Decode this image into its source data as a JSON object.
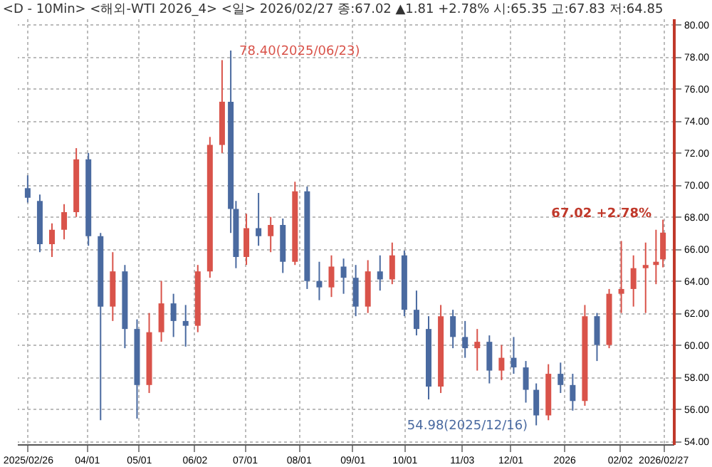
{
  "chart_data": {
    "type": "candlestick",
    "title": "<D - 10Min> <해외-WTI 2026_4> <일> 2026/02/27 종:67.02 ▲1.81 +2.78% 시:65.35 고:67.83 저:64.85",
    "x": [
      "2025-02-26",
      "2025-03-05",
      "2025-03-12",
      "2025-03-19",
      "2025-03-26",
      "2025-04-02",
      "2025-04-09",
      "2025-04-16",
      "2025-04-23",
      "2025-04-30",
      "2025-05-07",
      "2025-05-14",
      "2025-05-21",
      "2025-05-28",
      "2025-06-04",
      "2025-06-11",
      "2025-06-18",
      "2025-06-23",
      "2025-06-26",
      "2025-07-02",
      "2025-07-09",
      "2025-07-16",
      "2025-07-23",
      "2025-07-30",
      "2025-08-06",
      "2025-08-13",
      "2025-08-20",
      "2025-08-27",
      "2025-09-03",
      "2025-09-10",
      "2025-09-17",
      "2025-09-24",
      "2025-10-01",
      "2025-10-08",
      "2025-10-15",
      "2025-10-22",
      "2025-10-29",
      "2025-11-05",
      "2025-11-12",
      "2025-11-19",
      "2025-11-26",
      "2025-12-03",
      "2025-12-10",
      "2025-12-16",
      "2025-12-23",
      "2025-12-30",
      "2026-01-06",
      "2026-01-13",
      "2026-01-20",
      "2026-01-27",
      "2026-02-03",
      "2026-02-10",
      "2026-02-17",
      "2026-02-23",
      "2026-02-27"
    ],
    "ohlc": [
      [
        69.8,
        70.6,
        68.9,
        69.2
      ],
      [
        69.0,
        69.4,
        65.8,
        66.3
      ],
      [
        66.3,
        67.6,
        65.5,
        67.2
      ],
      [
        67.2,
        68.8,
        66.6,
        68.3
      ],
      [
        68.3,
        72.3,
        68.0,
        71.6
      ],
      [
        71.6,
        72.0,
        66.2,
        66.8
      ],
      [
        66.8,
        67.0,
        55.3,
        62.4
      ],
      [
        62.4,
        65.8,
        61.5,
        64.6
      ],
      [
        64.6,
        65.0,
        59.8,
        61.0
      ],
      [
        61.0,
        61.6,
        55.4,
        57.5
      ],
      [
        57.5,
        62.0,
        57.0,
        60.8
      ],
      [
        60.8,
        64.0,
        60.2,
        62.6
      ],
      [
        62.6,
        63.2,
        60.5,
        61.5
      ],
      [
        61.5,
        62.5,
        59.9,
        61.2
      ],
      [
        61.2,
        65.0,
        60.8,
        64.6
      ],
      [
        64.6,
        73.0,
        64.2,
        72.5
      ],
      [
        72.5,
        77.8,
        72.0,
        75.2
      ],
      [
        75.2,
        78.4,
        67.0,
        68.5
      ],
      [
        68.5,
        69.0,
        64.8,
        65.5
      ],
      [
        65.5,
        68.2,
        65.0,
        67.3
      ],
      [
        67.3,
        69.5,
        66.2,
        66.8
      ],
      [
        66.8,
        68.0,
        65.8,
        67.5
      ],
      [
        67.5,
        67.9,
        64.5,
        65.2
      ],
      [
        65.2,
        70.2,
        65.0,
        69.6
      ],
      [
        69.6,
        69.9,
        63.5,
        64.0
      ],
      [
        64.0,
        65.2,
        62.8,
        63.6
      ],
      [
        63.6,
        65.6,
        63.0,
        64.9
      ],
      [
        64.9,
        65.4,
        63.2,
        64.2
      ],
      [
        64.2,
        65.0,
        61.8,
        62.4
      ],
      [
        62.4,
        65.3,
        62.0,
        64.6
      ],
      [
        64.6,
        65.6,
        63.4,
        64.1
      ],
      [
        64.1,
        66.4,
        63.8,
        65.6
      ],
      [
        65.6,
        65.9,
        61.8,
        62.2
      ],
      [
        62.2,
        63.4,
        60.6,
        61.0
      ],
      [
        61.0,
        61.8,
        56.6,
        57.4
      ],
      [
        57.4,
        62.5,
        57.0,
        61.8
      ],
      [
        61.8,
        62.2,
        59.8,
        60.5
      ],
      [
        60.5,
        61.5,
        59.2,
        59.8
      ],
      [
        59.8,
        61.0,
        58.4,
        60.2
      ],
      [
        60.2,
        60.6,
        57.6,
        58.4
      ],
      [
        58.4,
        60.0,
        57.8,
        59.2
      ],
      [
        59.2,
        60.5,
        58.2,
        58.6
      ],
      [
        58.6,
        59.0,
        56.4,
        57.2
      ],
      [
        57.2,
        57.6,
        54.98,
        55.6
      ],
      [
        55.6,
        58.8,
        55.3,
        58.2
      ],
      [
        58.2,
        58.9,
        57.0,
        57.5
      ],
      [
        57.5,
        58.2,
        55.9,
        56.5
      ],
      [
        56.5,
        62.5,
        56.2,
        61.8
      ],
      [
        61.8,
        62.0,
        59.0,
        60.0
      ],
      [
        60.0,
        63.5,
        59.8,
        63.2
      ],
      [
        63.2,
        66.5,
        62.0,
        63.5
      ],
      [
        63.5,
        65.6,
        62.4,
        64.8
      ],
      [
        64.8,
        66.4,
        62.0,
        65.0
      ],
      [
        65.0,
        67.2,
        63.8,
        65.2
      ],
      [
        65.35,
        67.83,
        64.85,
        67.02
      ]
    ],
    "colors": [
      "#4a6aa0",
      "#4a6aa0",
      "#d9534a",
      "#d9534a",
      "#d9534a",
      "#4a6aa0",
      "#4a6aa0",
      "#d9534a",
      "#4a6aa0",
      "#4a6aa0",
      "#d9534a",
      "#d9534a",
      "#4a6aa0",
      "#4a6aa0",
      "#d9534a",
      "#d9534a",
      "#d9534a",
      "#4a6aa0",
      "#4a6aa0",
      "#d9534a",
      "#4a6aa0",
      "#d9534a",
      "#4a6aa0",
      "#d9534a",
      "#4a6aa0",
      "#4a6aa0",
      "#d9534a",
      "#4a6aa0",
      "#4a6aa0",
      "#d9534a",
      "#4a6aa0",
      "#d9534a",
      "#4a6aa0",
      "#4a6aa0",
      "#4a6aa0",
      "#d9534a",
      "#4a6aa0",
      "#4a6aa0",
      "#d9534a",
      "#4a6aa0",
      "#d9534a",
      "#4a6aa0",
      "#4a6aa0",
      "#4a6aa0",
      "#d9534a",
      "#4a6aa0",
      "#4a6aa0",
      "#d9534a",
      "#4a6aa0",
      "#d9534a",
      "#d9534a",
      "#d9534a",
      "#d9534a",
      "#d9534a",
      "#d9534a"
    ],
    "xlim": [
      "2025-02-24",
      "2026-03-01"
    ],
    "xticks": [
      {
        "value": "2025-02-26",
        "label": "2025/02/26"
      },
      {
        "value": "2025-04-01",
        "label": "04/01"
      },
      {
        "value": "2025-05-01",
        "label": "05/01"
      },
      {
        "value": "2025-06-02",
        "label": "06/02"
      },
      {
        "value": "2025-07-01",
        "label": "07/01"
      },
      {
        "value": "2025-08-01",
        "label": "08/01"
      },
      {
        "value": "2025-09-01",
        "label": "09/01"
      },
      {
        "value": "2025-10-01",
        "label": "10/01"
      },
      {
        "value": "2025-11-03",
        "label": "11/03"
      },
      {
        "value": "2025-12-01",
        "label": "12/01"
      },
      {
        "value": "2026-01-01",
        "label": "2026"
      },
      {
        "value": "2026-02-02",
        "label": "02/02"
      },
      {
        "value": "2026-02-27",
        "label": "2026/02/27"
      }
    ],
    "ylim": [
      53.8,
      80.4
    ],
    "yticks": [
      {
        "value": 54,
        "label": "54.00"
      },
      {
        "value": 56,
        "label": "56.00"
      },
      {
        "value": 58,
        "label": "58.00"
      },
      {
        "value": 60,
        "label": "60.00"
      },
      {
        "value": 62,
        "label": "62.00"
      },
      {
        "value": 64,
        "label": "64.00"
      },
      {
        "value": 66,
        "label": "66.00"
      },
      {
        "value": 68,
        "label": "68.00"
      },
      {
        "value": 70,
        "label": "70.00"
      },
      {
        "value": 72,
        "label": "72.00"
      },
      {
        "value": 74,
        "label": "74.00"
      },
      {
        "value": 76,
        "label": "76.00"
      },
      {
        "value": 78,
        "label": "78.00"
      },
      {
        "value": 80,
        "label": "80.00"
      }
    ],
    "grid": true,
    "annotations": [
      {
        "text": "78.40(2025/06/23)",
        "x": "2025-06-23",
        "y": 78.4
      },
      {
        "text": "54.98(2025/12/16)",
        "x": "2025-12-16",
        "y": 54.98
      },
      {
        "text": "67.02 +2.78%",
        "x": "2026-02-27",
        "y": 67.02
      }
    ]
  }
}
